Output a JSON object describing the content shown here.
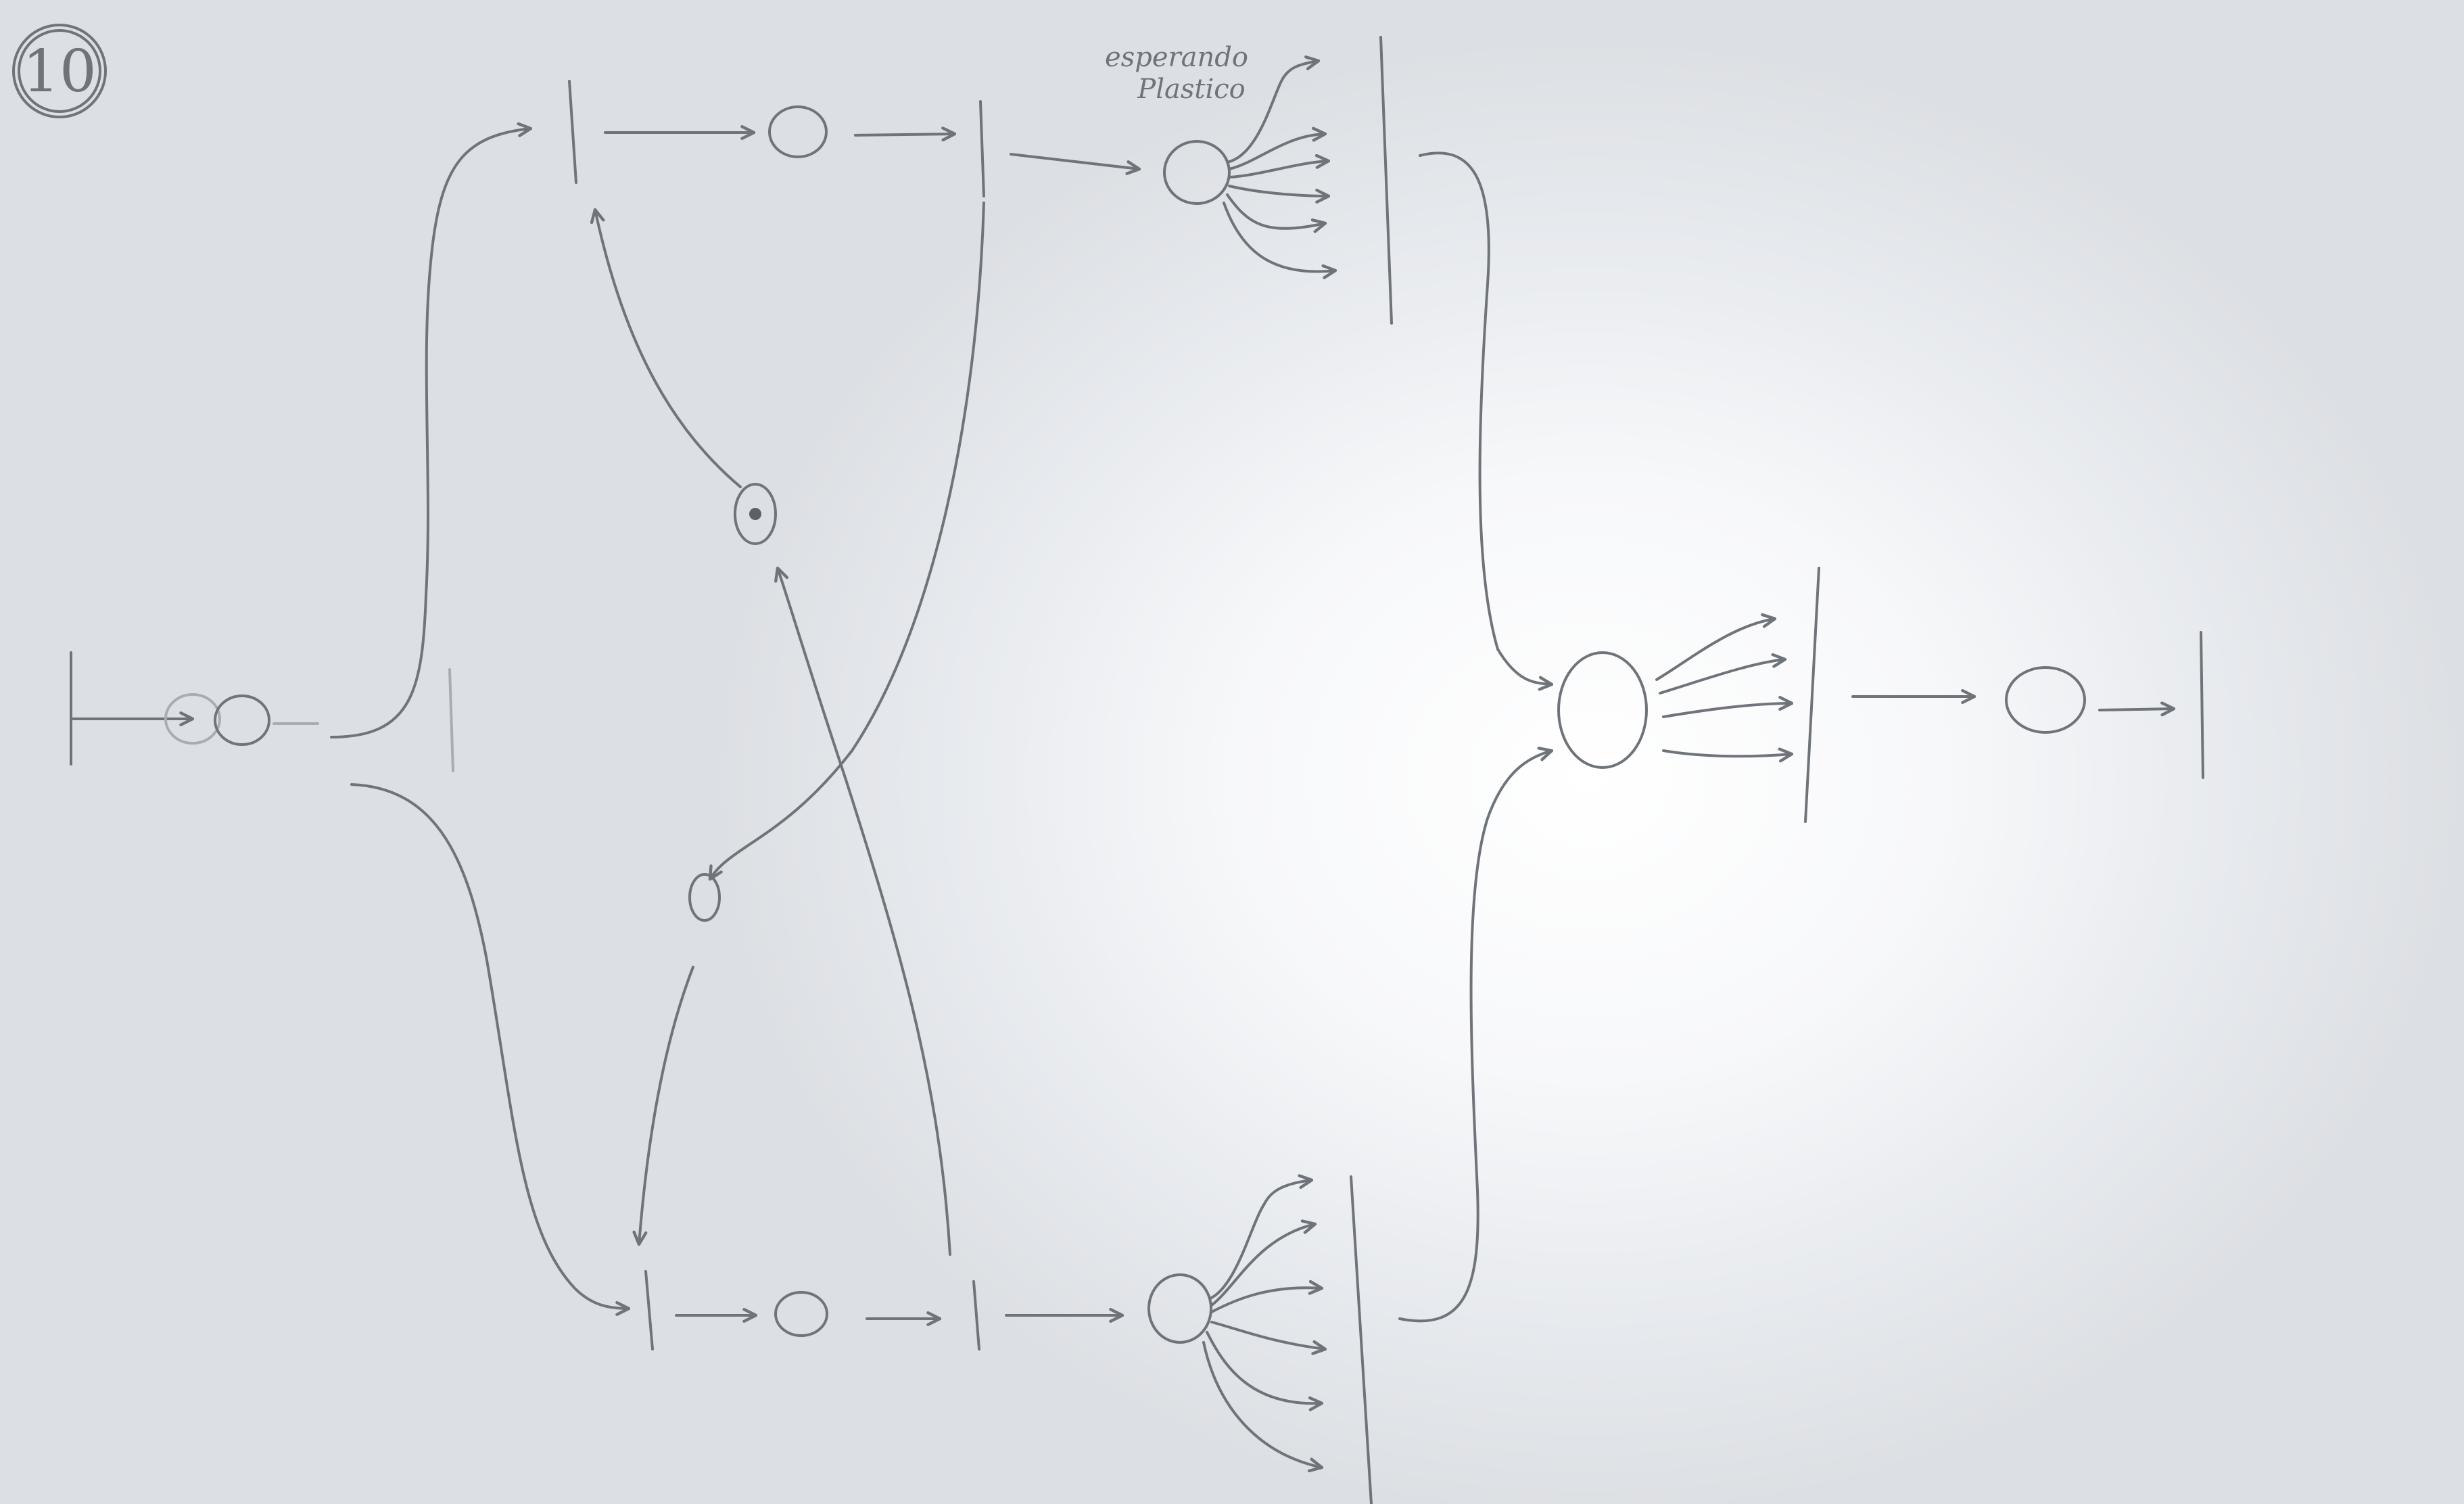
{
  "page_number": "10",
  "annotation": {
    "line1": "esperando",
    "line2": "Plastico"
  }
}
